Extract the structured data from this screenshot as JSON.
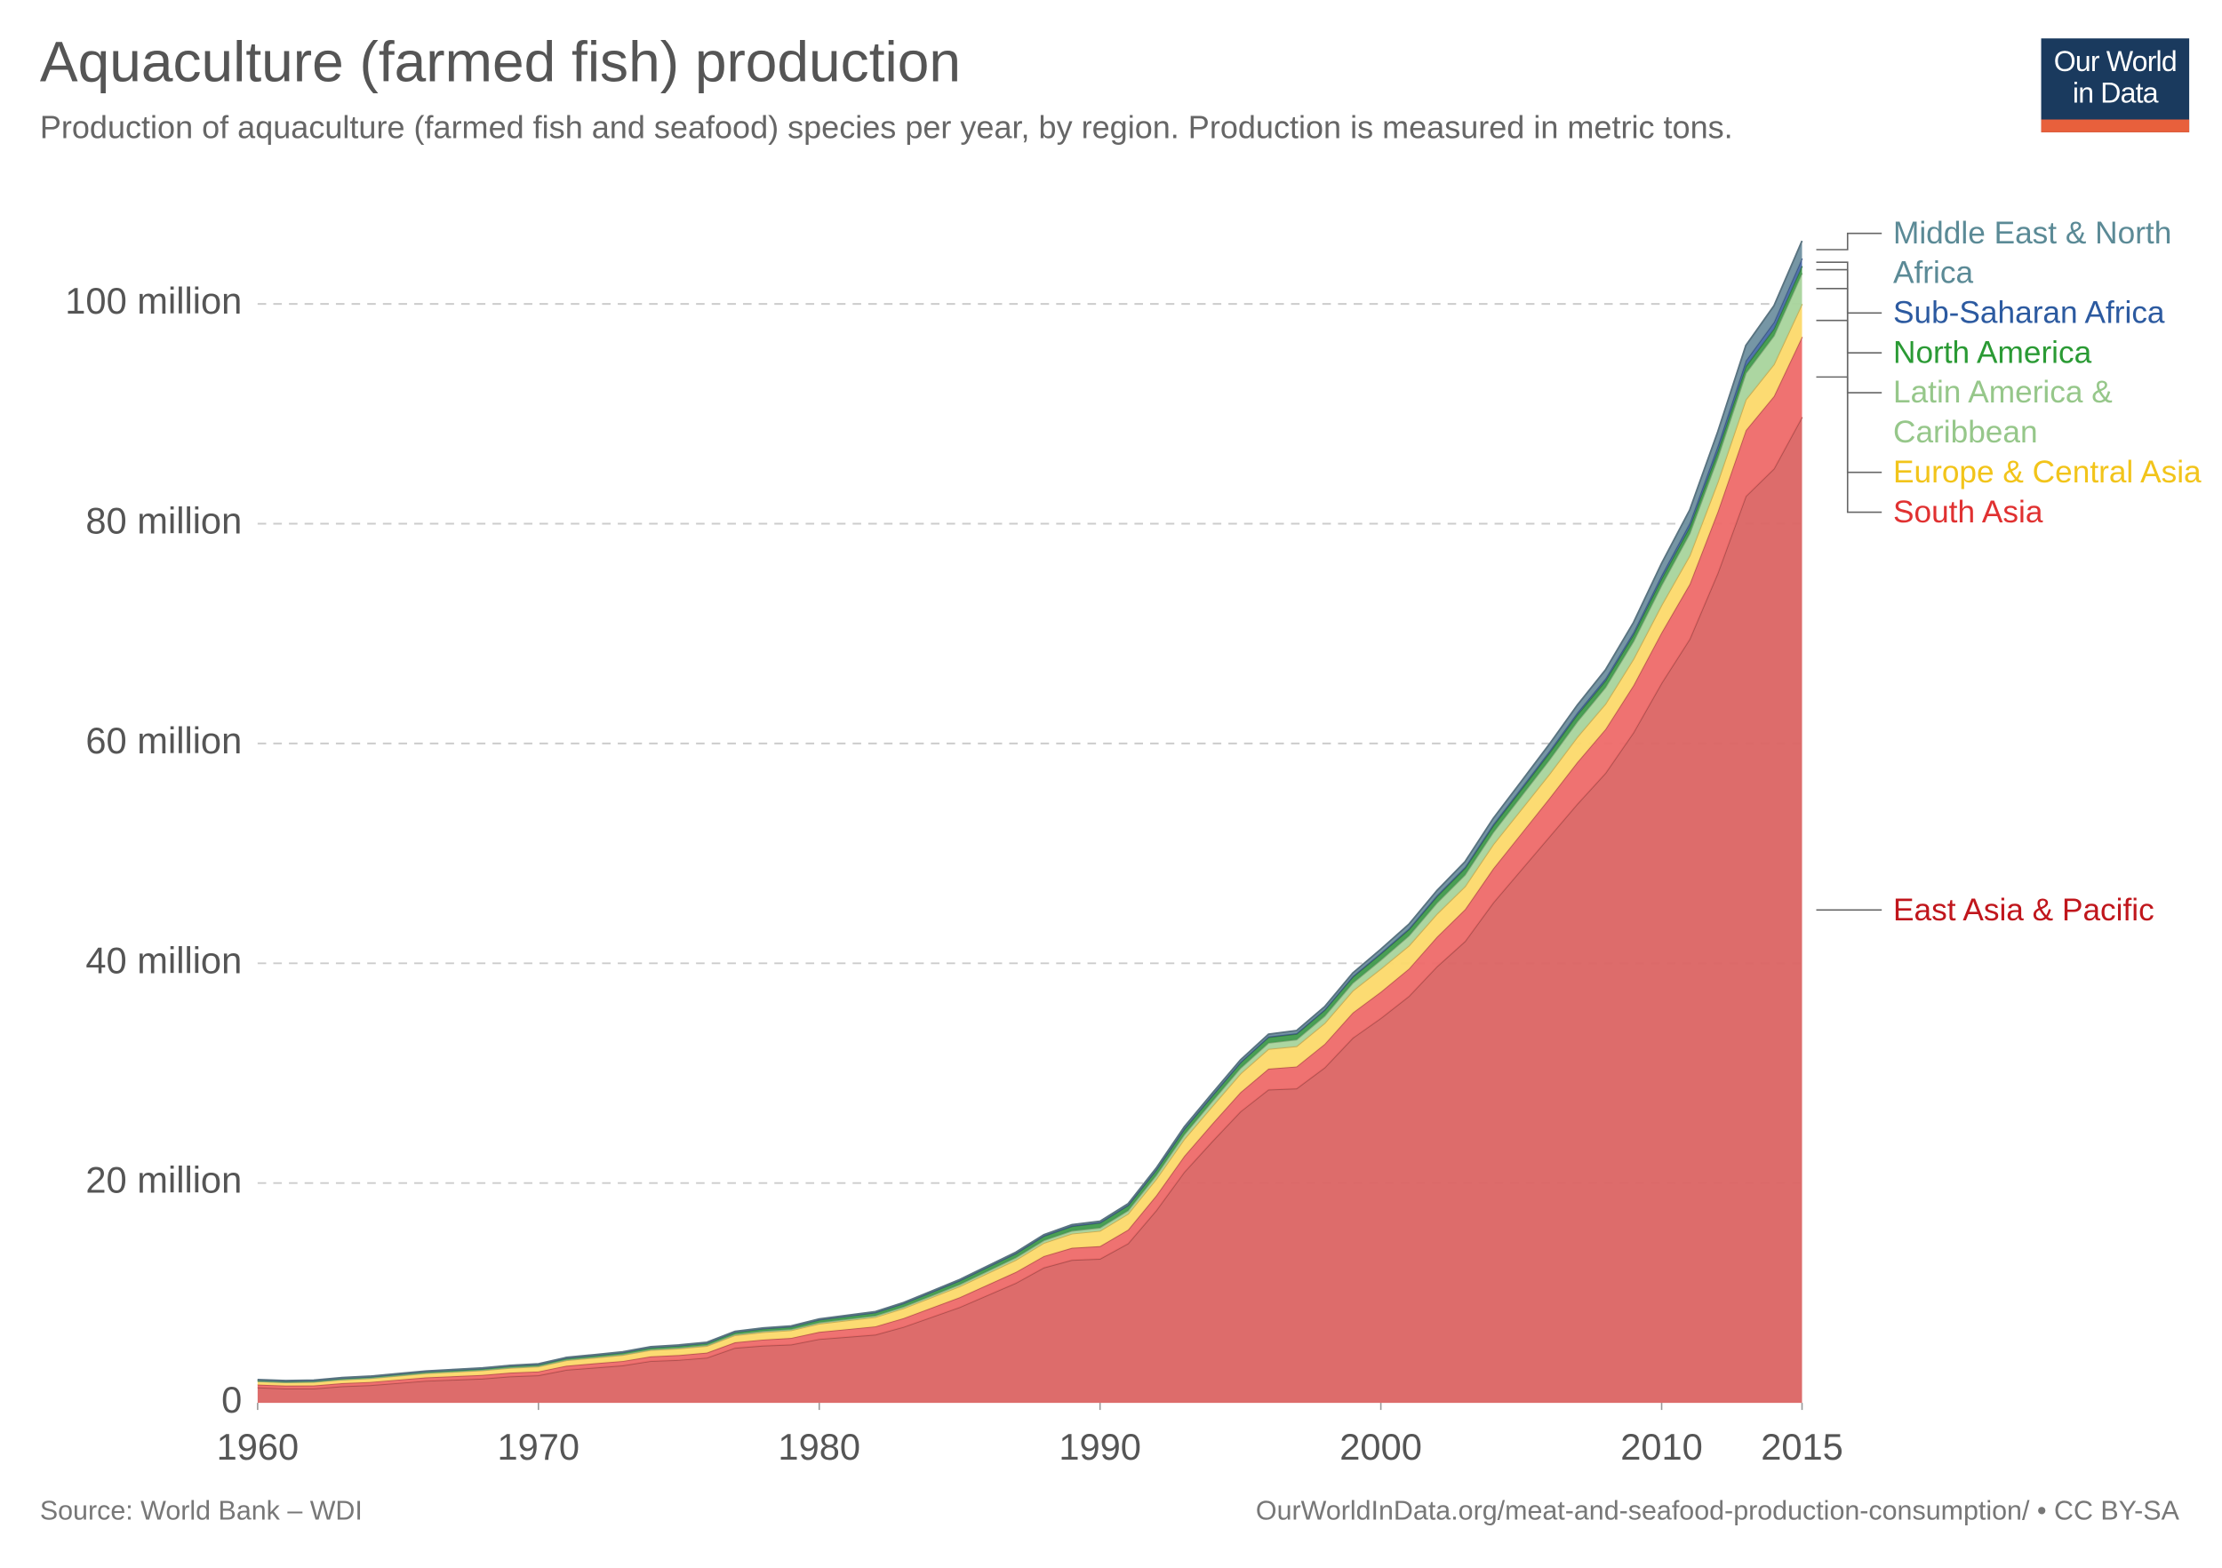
{
  "title": "Aquaculture (farmed fish) production",
  "subtitle": "Production of aquaculture (farmed fish and seafood) species per year, by region. Production is measured in metric tons.",
  "logo": "Our World in Data",
  "source": "Source: World Bank – WDI",
  "url": "OurWorldInData.org/meat-and-seafood-production-consumption/ • CC BY-SA",
  "chart_data": {
    "type": "stacked-area",
    "x": [
      1960,
      1961,
      1962,
      1963,
      1964,
      1965,
      1966,
      1967,
      1968,
      1969,
      1970,
      1971,
      1972,
      1973,
      1974,
      1975,
      1976,
      1977,
      1978,
      1979,
      1980,
      1981,
      1982,
      1983,
      1984,
      1985,
      1986,
      1987,
      1988,
      1989,
      1990,
      1991,
      1992,
      1993,
      1994,
      1995,
      1996,
      1997,
      1998,
      1999,
      2000,
      2001,
      2002,
      2003,
      2004,
      2005,
      2006,
      2007,
      2008,
      2009,
      2010,
      2011,
      2012,
      2013,
      2014,
      2015
    ],
    "xlim": [
      1960,
      2015
    ],
    "xticks": [
      1960,
      1970,
      1980,
      1990,
      2000,
      2010,
      2015
    ],
    "ylim": [
      0,
      105000000
    ],
    "yticks": [
      0,
      {
        "value": 20000000,
        "label": "20 million"
      },
      {
        "value": 40000000,
        "label": "40 million"
      },
      {
        "value": 60000000,
        "label": "60 million"
      },
      {
        "value": 80000000,
        "label": "80 million"
      },
      {
        "value": 100000000,
        "label": "100 million"
      }
    ],
    "grid": true,
    "series": [
      {
        "name": "East Asia & Pacific",
        "color": "#db6463",
        "label_color": "#c0161c",
        "values": [
          1400000,
          1300000,
          1300000,
          1500000,
          1600000,
          1800000,
          2000000,
          2100000,
          2200000,
          2400000,
          2500000,
          3000000,
          3200000,
          3400000,
          3800000,
          3900000,
          4100000,
          5000000,
          5200000,
          5300000,
          5800000,
          6000000,
          6200000,
          6900000,
          7800000,
          8700000,
          9800000,
          10900000,
          12300000,
          13000000,
          13100000,
          14500000,
          17500000,
          21000000,
          23800000,
          26500000,
          28500000,
          28600000,
          30500000,
          33200000,
          35000000,
          37000000,
          39700000,
          42000000,
          45500000,
          48500000,
          51500000,
          54500000,
          57300000,
          61000000,
          65500000,
          69500000,
          75500000,
          82500000,
          85000000,
          89700000
        ]
      },
      {
        "name": "South Asia",
        "color": "#ee6a69",
        "label_color": "#e03131",
        "values": [
          250000,
          260000,
          270000,
          280000,
          290000,
          300000,
          310000,
          320000,
          330000,
          340000,
          350000,
          370000,
          390000,
          400000,
          420000,
          440000,
          460000,
          500000,
          550000,
          600000,
          650000,
          700000,
          750000,
          800000,
          850000,
          900000,
          950000,
          1000000,
          1050000,
          1100000,
          1150000,
          1250000,
          1350000,
          1450000,
          1600000,
          1750000,
          1900000,
          2000000,
          2150000,
          2300000,
          2400000,
          2500000,
          2700000,
          2900000,
          3100000,
          3300000,
          3500000,
          3800000,
          4000000,
          4300000,
          4600000,
          5000000,
          5600000,
          6000000,
          6600000,
          7300000
        ]
      },
      {
        "name": "Europe & Central Asia",
        "color": "#fcd96a",
        "label_color": "#f2c41a",
        "values": [
          300000,
          300000,
          320000,
          330000,
          350000,
          360000,
          380000,
          400000,
          420000,
          440000,
          460000,
          500000,
          520000,
          550000,
          580000,
          600000,
          620000,
          650000,
          680000,
          700000,
          750000,
          800000,
          850000,
          900000,
          950000,
          1000000,
          1050000,
          1100000,
          1200000,
          1300000,
          1400000,
          1450000,
          1500000,
          1550000,
          1600000,
          1700000,
          1800000,
          1850000,
          1900000,
          2000000,
          2100000,
          2100000,
          2100000,
          2100000,
          2200000,
          2200000,
          2200000,
          2300000,
          2300000,
          2400000,
          2500000,
          2600000,
          2700000,
          2800000,
          2900000,
          3000000
        ]
      },
      {
        "name": "Latin America & Caribbean",
        "color": "#a8d49c",
        "label_color": "#96c78a",
        "values": [
          20000,
          20000,
          30000,
          30000,
          30000,
          40000,
          40000,
          40000,
          50000,
          50000,
          50000,
          60000,
          60000,
          70000,
          70000,
          80000,
          80000,
          90000,
          100000,
          100000,
          110000,
          120000,
          130000,
          140000,
          150000,
          170000,
          190000,
          210000,
          230000,
          250000,
          280000,
          300000,
          350000,
          400000,
          450000,
          500000,
          550000,
          600000,
          650000,
          700000,
          800000,
          900000,
          1000000,
          1050000,
          1100000,
          1200000,
          1300000,
          1400000,
          1500000,
          1600000,
          1800000,
          2000000,
          2200000,
          2400000,
          2600000,
          2800000
        ]
      },
      {
        "name": "North America",
        "color": "#3f9a4c",
        "label_color": "#2a9a34",
        "values": [
          100000,
          100000,
          100000,
          110000,
          110000,
          120000,
          120000,
          130000,
          130000,
          140000,
          140000,
          150000,
          160000,
          170000,
          180000,
          190000,
          200000,
          210000,
          220000,
          230000,
          250000,
          270000,
          290000,
          300000,
          320000,
          340000,
          360000,
          380000,
          400000,
          420000,
          450000,
          460000,
          480000,
          500000,
          500000,
          500000,
          520000,
          520000,
          530000,
          550000,
          560000,
          570000,
          580000,
          600000,
          600000,
          600000,
          620000,
          620000,
          600000,
          600000,
          600000,
          600000,
          620000,
          620000,
          630000,
          640000
        ]
      },
      {
        "name": "Sub-Saharan Africa",
        "color": "#4a6ba8",
        "label_color": "#2c5aa0",
        "values": [
          10000,
          10000,
          10000,
          10000,
          10000,
          10000,
          10000,
          10000,
          10000,
          10000,
          10000,
          10000,
          10000,
          10000,
          10000,
          10000,
          10000,
          10000,
          20000,
          20000,
          20000,
          20000,
          20000,
          20000,
          20000,
          30000,
          30000,
          30000,
          30000,
          40000,
          40000,
          40000,
          40000,
          50000,
          50000,
          50000,
          50000,
          60000,
          60000,
          60000,
          70000,
          80000,
          90000,
          100000,
          120000,
          140000,
          160000,
          180000,
          200000,
          220000,
          300000,
          350000,
          450000,
          500000,
          600000,
          700000
        ]
      },
      {
        "name": "Middle East & North Africa",
        "color": "#6f90a0",
        "label_color": "#5b8a96",
        "values": [
          30000,
          30000,
          30000,
          30000,
          30000,
          30000,
          30000,
          30000,
          30000,
          30000,
          40000,
          40000,
          40000,
          40000,
          40000,
          40000,
          40000,
          40000,
          40000,
          40000,
          50000,
          50000,
          60000,
          60000,
          70000,
          70000,
          80000,
          80000,
          90000,
          100000,
          100000,
          120000,
          140000,
          160000,
          180000,
          200000,
          220000,
          240000,
          260000,
          300000,
          350000,
          400000,
          450000,
          500000,
          550000,
          600000,
          650000,
          700000,
          800000,
          900000,
          1100000,
          1200000,
          1300000,
          1400000,
          1500000,
          1600000
        ]
      }
    ]
  }
}
